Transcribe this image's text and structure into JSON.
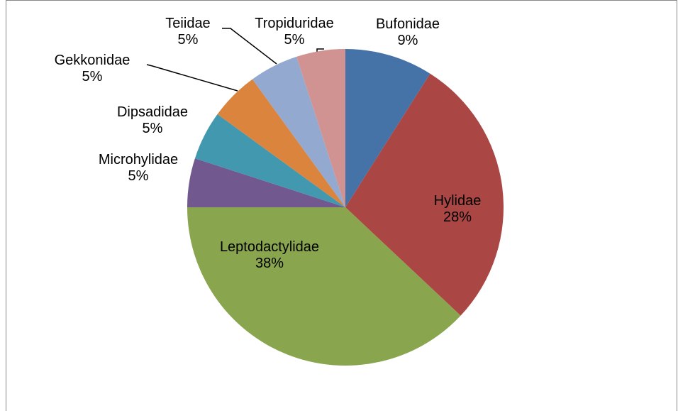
{
  "chart_data": {
    "type": "pie",
    "categories": [
      "Bufonidae",
      "Hylidae",
      "Leptodactylidae",
      "Microhylidae",
      "Dipsadidae",
      "Gekkonidae",
      "Teiidae",
      "Tropiduridae"
    ],
    "values": [
      9,
      28,
      38,
      5,
      5,
      5,
      5,
      5
    ],
    "value_labels": [
      "9%",
      "28%",
      "38%",
      "5%",
      "5%",
      "5%",
      "5%",
      "5%"
    ],
    "colors": [
      "#4572a7",
      "#aa4643",
      "#89a54e",
      "#71588f",
      "#4198af",
      "#db843d",
      "#93a9cf",
      "#d19392"
    ]
  }
}
